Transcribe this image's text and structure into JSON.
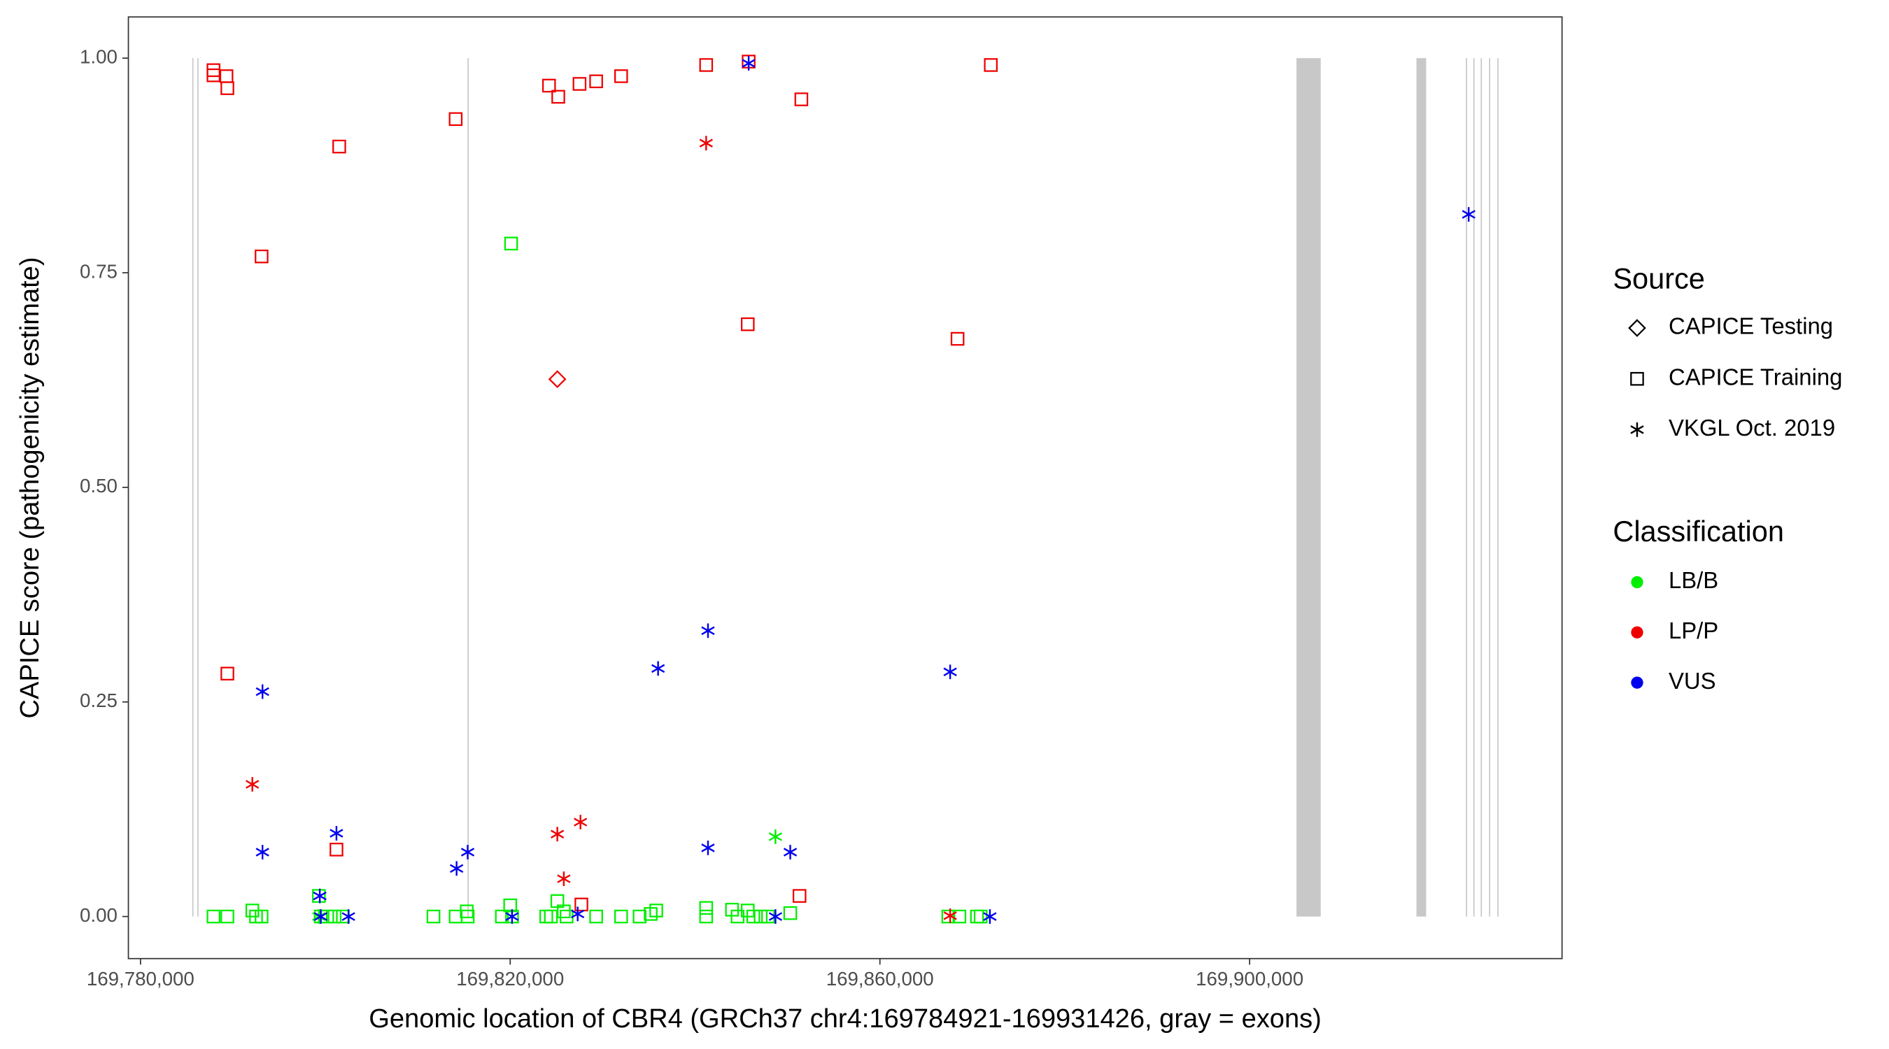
{
  "chart_data": {
    "type": "scatter",
    "xlabel": "Genomic location of CBR4 (GRCh37 chr4:169784921-169931426, gray = exons)",
    "ylabel": "CAPICE score (pathogenicity estimate)",
    "xlim": [
      169778690,
      169933800
    ],
    "ylim": [
      -0.049,
      1.048
    ],
    "xticks": [
      {
        "value": 169780000,
        "label": "169,780,000"
      },
      {
        "value": 169820000,
        "label": "169,820,000"
      },
      {
        "value": 169860000,
        "label": "169,860,000"
      },
      {
        "value": 169900000,
        "label": "169,900,000"
      }
    ],
    "yticks": [
      {
        "value": 0,
        "label": "0.00"
      },
      {
        "value": 0.25,
        "label": "0.25"
      },
      {
        "value": 0.5,
        "label": "0.50"
      },
      {
        "value": 0.75,
        "label": "0.75"
      },
      {
        "value": 1,
        "label": "1.00"
      }
    ],
    "exon_color": "#c8c8c8",
    "exons": [
      [
        169785600,
        169785650
      ],
      [
        169786150,
        169786200
      ],
      [
        169815380,
        169815420
      ],
      [
        169905069,
        169907691
      ],
      [
        169918048,
        169919097
      ],
      [
        169923400,
        169923450
      ],
      [
        169924200,
        169924250
      ],
      [
        169925000,
        169925050
      ],
      [
        169925900,
        169925950
      ],
      [
        169926800,
        169926850
      ]
    ],
    "legend": {
      "source": {
        "title": "Source",
        "items": [
          {
            "name": "CAPICE Testing",
            "shape": "diamond"
          },
          {
            "name": "CAPICE Training",
            "shape": "square"
          },
          {
            "name": "VKGL Oct. 2019",
            "shape": "asterisk"
          }
        ]
      },
      "classification": {
        "title": "Classification",
        "items": [
          {
            "name": "LB/B",
            "color": "#00ee00"
          },
          {
            "name": "LP/P",
            "color": "#ee0000"
          },
          {
            "name": "VUS",
            "color": "#0000ee"
          }
        ]
      }
    },
    "series": [
      {
        "source": "CAPICE Training",
        "classification": "LB/B",
        "x": [
          169787900,
          169789400,
          169792100,
          169793100,
          169792500,
          169799300,
          169799500,
          169800200,
          169801000,
          169801900,
          169811700,
          169814100,
          169815300,
          169815400,
          169819100,
          169820000,
          169820200,
          169820100,
          169823900,
          169824400,
          169825100,
          169825800,
          169826100,
          169829300,
          169832000,
          169834000,
          169835200,
          169835800,
          169841200,
          169841200,
          169844000,
          169844600,
          169845700,
          169846300,
          169847100,
          169847900,
          169850300,
          169867400,
          169868600,
          169870500,
          169870900
        ],
        "values": [
          0,
          0,
          0.007,
          0,
          0,
          0.024,
          0,
          0,
          0,
          0,
          0,
          0,
          0.006,
          0,
          0,
          0.013,
          0,
          0.784,
          0,
          0,
          0.018,
          0.006,
          0,
          0,
          0,
          0,
          0.003,
          0.007,
          0.01,
          0,
          0.008,
          0,
          0.007,
          0,
          0,
          0,
          0.004,
          0,
          0,
          0,
          0
        ]
      },
      {
        "source": "CAPICE Training",
        "classification": "LP/P",
        "x": [
          169787900,
          169787900,
          169789300,
          169789400,
          169793100,
          169789400,
          169801500,
          169814100,
          169824200,
          169825200,
          169827500,
          169829300,
          169832000,
          169841200,
          169845700,
          169851500,
          169872000,
          169868400,
          169801200,
          169827700,
          169851300,
          169845800
        ],
        "values": [
          0.986,
          0.98,
          0.979,
          0.965,
          0.769,
          0.283,
          0.897,
          0.929,
          0.968,
          0.955,
          0.97,
          0.973,
          0.979,
          0.992,
          0.69,
          0.952,
          0.992,
          0.673,
          0.078,
          0.014,
          0.024,
          0.996
        ]
      },
      {
        "source": "CAPICE Testing",
        "classification": "LP/P",
        "x": [
          169825100
        ],
        "values": [
          0.626
        ]
      },
      {
        "source": "VKGL Oct. 2019",
        "classification": "LB/B",
        "x": [
          169848700,
          169799300
        ],
        "values": [
          0.093,
          0
        ]
      },
      {
        "source": "VKGL Oct. 2019",
        "classification": "LP/P",
        "x": [
          169792100,
          169841200,
          169825100,
          169827600,
          169825800,
          169867600
        ],
        "values": [
          0.154,
          0.901,
          0.096,
          0.11,
          0.044,
          0.001
        ]
      },
      {
        "source": "VKGL Oct. 2019",
        "classification": "VUS",
        "x": [
          169793200,
          169793200,
          169799400,
          169801200,
          169802500,
          169799500,
          169814200,
          169815400,
          169820200,
          169827300,
          169836000,
          169841400,
          169841400,
          169845800,
          169848700,
          169850300,
          169867600,
          169871900,
          169923700
        ],
        "values": [
          0.262,
          0.075,
          0.024,
          0.097,
          0,
          0,
          0.056,
          0.075,
          0,
          0.003,
          0.289,
          0.333,
          0.08,
          0.994,
          0,
          0.075,
          0.285,
          0,
          0.818
        ]
      }
    ]
  }
}
